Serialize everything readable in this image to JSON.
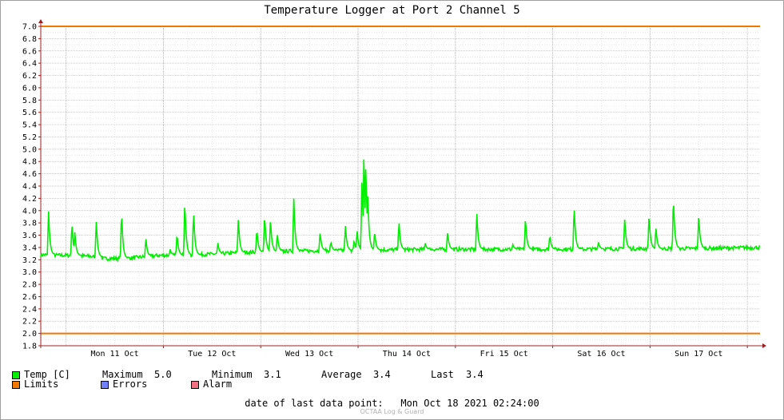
{
  "title": "Temperature Logger at Port 2 Channel 5",
  "colors": {
    "temp": "#00ee00",
    "limits": "#f07800",
    "errors": "#7080ff",
    "alarm": "#f07080",
    "grid_major": "#f0a0a0",
    "grid_minor": "#d8d8d8",
    "axis": "#a02020"
  },
  "legend": {
    "temp_label": "Temp [C]",
    "max_label": "Maximum",
    "max_value": "5.0",
    "min_label": "Minimum",
    "min_value": "3.1",
    "avg_label": "Average",
    "avg_value": "3.4",
    "last_label": "Last",
    "last_value": "3.4",
    "limits_label": "Limits",
    "errors_label": "Errors",
    "alarm_label": "Alarm"
  },
  "footer": {
    "last_point_label": "date of last data point:",
    "last_point_value": "Mon Oct 18 2021 02:24:00",
    "credit": "OCTAA Log & Guard"
  },
  "chart_data": {
    "type": "line",
    "title": "Temperature Logger at Port 2 Channel 5",
    "xlabel": "",
    "ylabel": "",
    "x_unit": "days since chart start (Sun 10 Oct 2021 ~17:00)",
    "xlim": [
      0,
      7.39
    ],
    "ylim": [
      1.8,
      7.0
    ],
    "y_ticks": [
      "1.8",
      "2.0",
      "2.2",
      "2.4",
      "2.6",
      "2.8",
      "3.0",
      "3.2",
      "3.4",
      "3.6",
      "3.8",
      "4.0",
      "4.2",
      "4.4",
      "4.6",
      "4.8",
      "5.0",
      "5.2",
      "5.4",
      "5.6",
      "5.8",
      "6.0",
      "6.2",
      "6.4",
      "6.6",
      "6.8",
      "7.0"
    ],
    "x_ticks": [
      {
        "x": 0.76,
        "label": "Mon 11 Oct"
      },
      {
        "x": 1.76,
        "label": "Tue 12 Oct"
      },
      {
        "x": 2.76,
        "label": "Wed 13 Oct"
      },
      {
        "x": 3.76,
        "label": "Thu 14 Oct"
      },
      {
        "x": 4.76,
        "label": "Fri 15 Oct"
      },
      {
        "x": 5.76,
        "label": "Sat 16 Oct"
      },
      {
        "x": 6.76,
        "label": "Sun 17 Oct"
      }
    ],
    "grid": true,
    "legend_position": "bottom-left",
    "limits": [
      2.0,
      7.0
    ],
    "series": [
      {
        "name": "Temp [C]",
        "baseline": [
          [
            0.0,
            3.28
          ],
          [
            0.3,
            3.27
          ],
          [
            0.5,
            3.26
          ],
          [
            0.65,
            3.22
          ],
          [
            0.85,
            3.22
          ],
          [
            1.0,
            3.24
          ],
          [
            1.2,
            3.27
          ],
          [
            1.6,
            3.28
          ],
          [
            1.85,
            3.3
          ],
          [
            2.1,
            3.32
          ],
          [
            2.5,
            3.34
          ],
          [
            3.0,
            3.35
          ],
          [
            3.5,
            3.36
          ],
          [
            4.0,
            3.37
          ],
          [
            5.0,
            3.37
          ],
          [
            5.5,
            3.37
          ],
          [
            6.0,
            3.38
          ],
          [
            6.5,
            3.38
          ],
          [
            7.39,
            3.4
          ]
        ],
        "spikes": [
          [
            0.08,
            4.02
          ],
          [
            0.32,
            3.83
          ],
          [
            0.35,
            3.67
          ],
          [
            0.57,
            3.86
          ],
          [
            0.83,
            4.03
          ],
          [
            1.08,
            3.57
          ],
          [
            1.33,
            3.37
          ],
          [
            1.4,
            3.64
          ],
          [
            1.48,
            4.2
          ],
          [
            1.57,
            4.02
          ],
          [
            1.82,
            3.48
          ],
          [
            2.03,
            3.9
          ],
          [
            2.22,
            3.72
          ],
          [
            2.3,
            3.97
          ],
          [
            2.36,
            3.9
          ],
          [
            2.43,
            3.64
          ],
          [
            2.6,
            4.2
          ],
          [
            2.87,
            3.66
          ],
          [
            2.98,
            3.5
          ],
          [
            3.13,
            3.77
          ],
          [
            3.22,
            3.52
          ],
          [
            3.25,
            3.7
          ],
          [
            3.3,
            4.6
          ],
          [
            3.32,
            5.0
          ],
          [
            3.34,
            4.8
          ],
          [
            3.36,
            4.3
          ],
          [
            3.43,
            3.68
          ],
          [
            3.68,
            3.84
          ],
          [
            3.95,
            3.47
          ],
          [
            4.18,
            3.66
          ],
          [
            4.48,
            3.99
          ],
          [
            4.85,
            3.45
          ],
          [
            4.98,
            3.91
          ],
          [
            5.23,
            3.61
          ],
          [
            5.48,
            4.1
          ],
          [
            5.73,
            3.49
          ],
          [
            6.0,
            3.88
          ],
          [
            6.25,
            3.97
          ],
          [
            6.32,
            3.75
          ],
          [
            6.5,
            4.26
          ],
          [
            6.76,
            3.95
          ]
        ]
      }
    ]
  }
}
